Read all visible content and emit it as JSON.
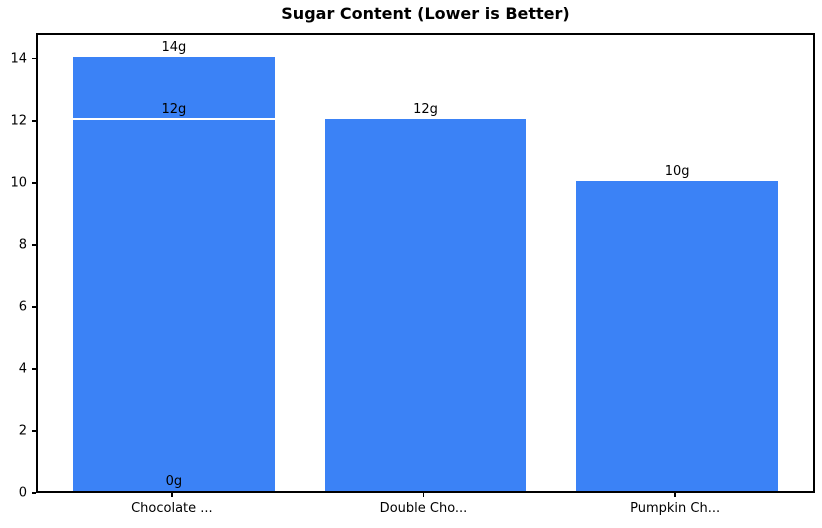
{
  "chart_data": {
    "type": "bar",
    "title": "Sugar Content (Lower is Better)",
    "xlabel": "",
    "ylabel": "",
    "categories": [
      "Chocolate ...",
      "Double Cho...",
      "Pumpkin Ch..."
    ],
    "bars": [
      {
        "category": "Chocolate ...",
        "segments": [
          {
            "value": 14,
            "label": "14g"
          },
          {
            "value": 12,
            "label": "12g"
          },
          {
            "value": 0,
            "label": "0g"
          }
        ]
      },
      {
        "category": "Double Cho...",
        "segments": [
          {
            "value": 12,
            "label": "12g"
          }
        ]
      },
      {
        "category": "Pumpkin Ch...",
        "segments": [
          {
            "value": 10,
            "label": "10g"
          }
        ]
      }
    ],
    "yticks": [
      0,
      2,
      4,
      6,
      8,
      10,
      12,
      14
    ],
    "ylim": [
      0,
      14.7
    ],
    "grid": false,
    "legend": false,
    "bar_color": "#3b82f6",
    "divider_color": "#ffffff",
    "text_color": "#000000",
    "background_color": "#ffffff"
  }
}
